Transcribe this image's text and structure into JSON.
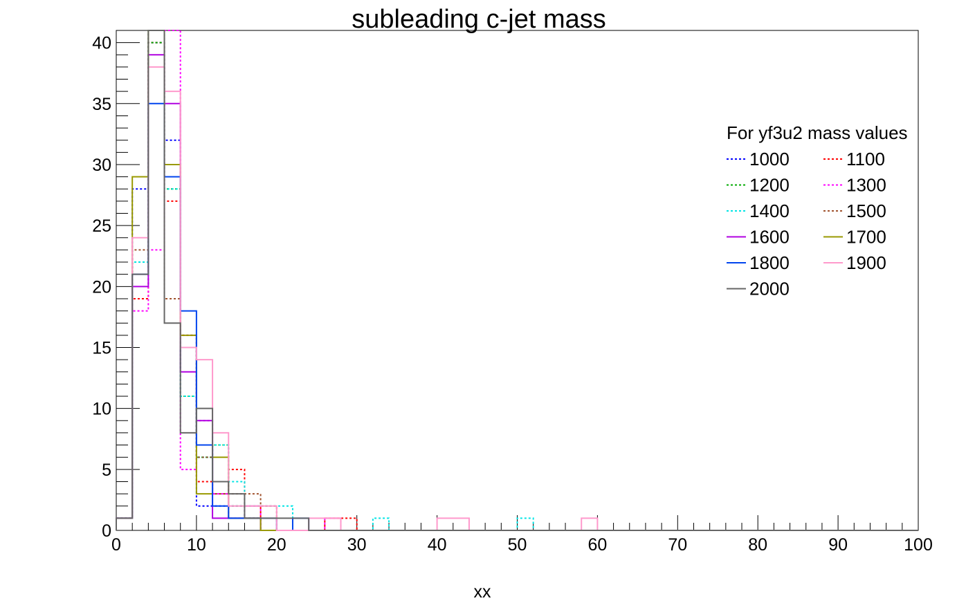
{
  "chart_data": {
    "type": "step-histogram",
    "title": "subleading c-jet mass",
    "xlabel": "xx",
    "ylabel": "",
    "xlim": [
      0,
      100
    ],
    "ylim": [
      0,
      41
    ],
    "bin_width": 2,
    "x_ticks": [
      0,
      10,
      20,
      30,
      40,
      50,
      60,
      70,
      80,
      90,
      100
    ],
    "y_ticks": [
      0,
      5,
      10,
      15,
      20,
      25,
      30,
      35,
      40
    ],
    "grid": false,
    "legend": {
      "title": "For yf3u2 mass values",
      "placement": "top-right",
      "columns": 2
    },
    "series": [
      {
        "name": "1000",
        "color": "#0000ff",
        "dash": true,
        "values": [
          1,
          28,
          40,
          32,
          16,
          2,
          2,
          2,
          1,
          0,
          0,
          0,
          0
        ]
      },
      {
        "name": "1100",
        "color": "#ff0000",
        "dash": true,
        "values": [
          1,
          19,
          40,
          27,
          16,
          4,
          3,
          5,
          2,
          0,
          0,
          0,
          0,
          1,
          1
        ]
      },
      {
        "name": "1200",
        "color": "#00aa00",
        "dash": true,
        "values": [
          1,
          22,
          40,
          28,
          11,
          6,
          7,
          2,
          1,
          0,
          0,
          0,
          0
        ]
      },
      {
        "name": "1300",
        "color": "#ff00ff",
        "dash": true,
        "values": [
          1,
          18,
          23,
          41,
          5,
          9,
          3,
          1,
          2,
          0,
          0,
          0,
          0,
          1
        ]
      },
      {
        "name": "1400",
        "color": "#00e5e5",
        "dash": true,
        "values": [
          1,
          22,
          41,
          28,
          11,
          6,
          7,
          4,
          2,
          2,
          2,
          0,
          0,
          0,
          0,
          0,
          1,
          0,
          0,
          0,
          0,
          0,
          0,
          0,
          0,
          1
        ]
      },
      {
        "name": "1500",
        "color": "#a0522d",
        "dash": true,
        "values": [
          1,
          23,
          41,
          19,
          15,
          6,
          3,
          3,
          3,
          2,
          0,
          0,
          0
        ]
      },
      {
        "name": "1600",
        "color": "#b000e0",
        "dash": false,
        "values": [
          1,
          20,
          39,
          35,
          13,
          9,
          1,
          1,
          1,
          0,
          0,
          0,
          0
        ]
      },
      {
        "name": "1700",
        "color": "#999900",
        "dash": false,
        "values": [
          1,
          29,
          41,
          30,
          16,
          3,
          6,
          1,
          1,
          0,
          0,
          0,
          0
        ]
      },
      {
        "name": "1800",
        "color": "#0044ee",
        "dash": false,
        "values": [
          1,
          21,
          35,
          29,
          18,
          7,
          2,
          1,
          1,
          1,
          0,
          1,
          0
        ]
      },
      {
        "name": "1900",
        "color": "#ff99cc",
        "dash": false,
        "values": [
          1,
          24,
          38,
          36,
          15,
          14,
          8,
          2,
          2,
          2,
          0,
          0,
          1,
          1,
          0,
          0,
          0,
          0,
          0,
          0,
          1,
          1,
          0,
          0,
          0,
          0,
          0,
          0,
          0,
          1
        ]
      },
      {
        "name": "2000",
        "color": "#666666",
        "dash": false,
        "values": [
          1,
          21,
          41,
          17,
          8,
          10,
          4,
          3,
          1,
          1,
          1,
          1,
          0
        ]
      }
    ]
  }
}
